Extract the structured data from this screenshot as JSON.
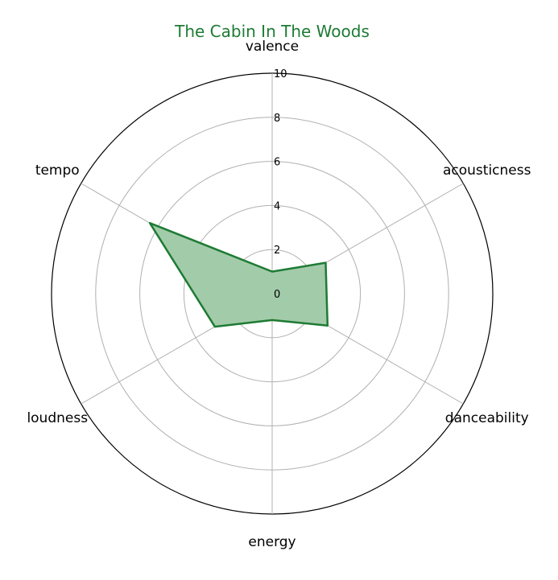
{
  "chart_data": {
    "type": "radar",
    "title": "The Cabin In The Woods",
    "axes": [
      "valence",
      "acousticness",
      "danceability",
      "energy",
      "loudness",
      "tempo"
    ],
    "series": [
      {
        "values": [
          1.0,
          2.8,
          2.9,
          1.2,
          3.0,
          6.4
        ]
      }
    ],
    "r_range": [
      0,
      10
    ],
    "r_ticks": [
      "0",
      "2",
      "4",
      "6",
      "8",
      "10"
    ],
    "grid": true,
    "colors": {
      "title": "#1e7b34",
      "line": "#1e7b34",
      "fill": "#a2cba9",
      "grid": "#b0b0b0",
      "outer_ring": "#000000"
    }
  }
}
